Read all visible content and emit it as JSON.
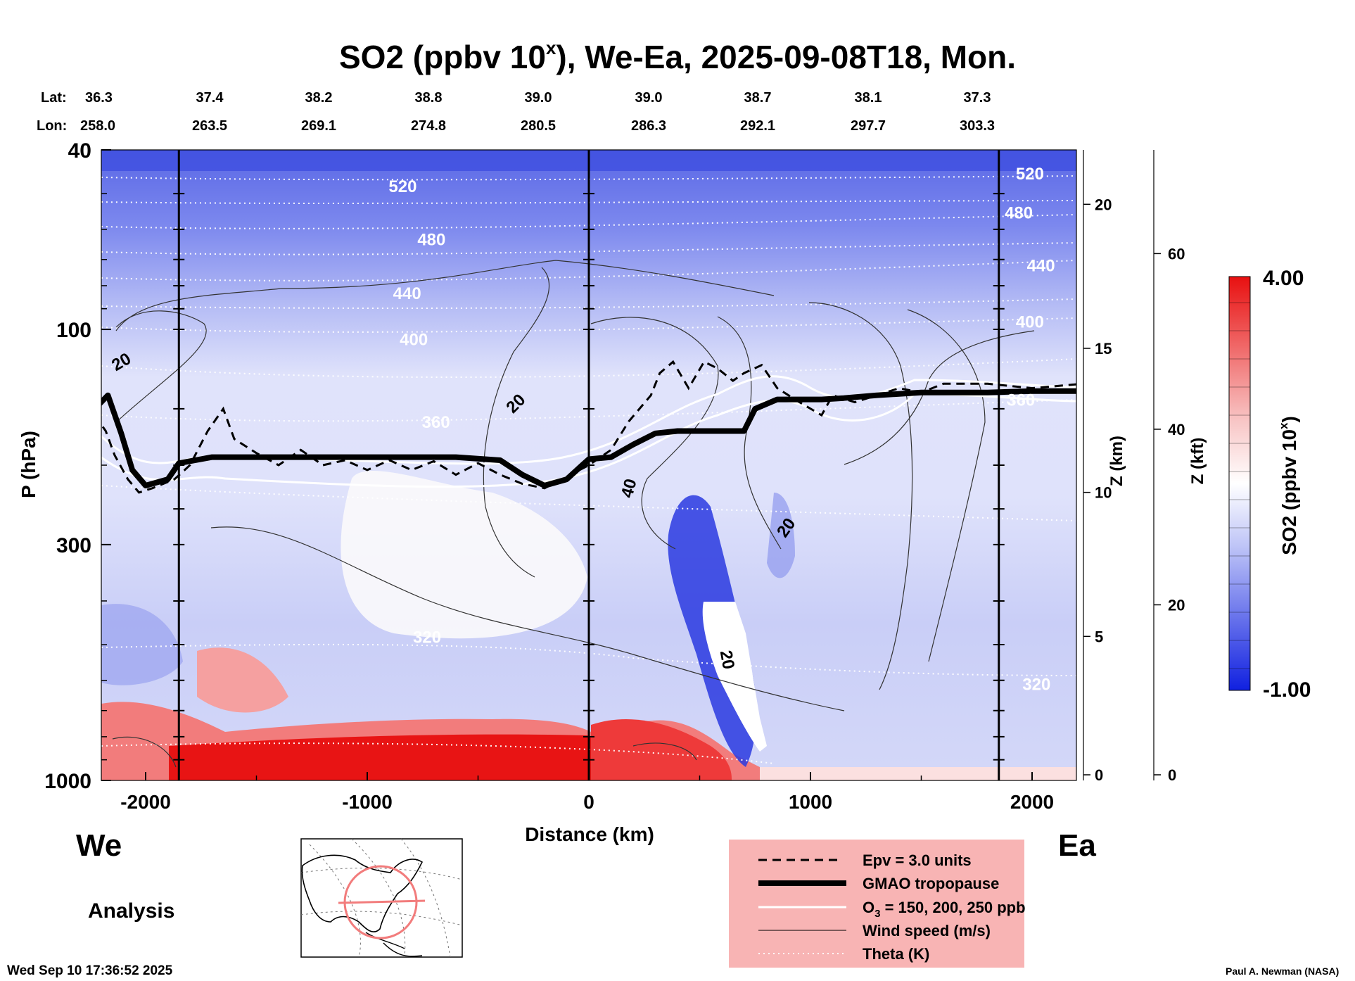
{
  "chart_data": {
    "type": "heatmap",
    "title_main": "SO2 (ppbv 10",
    "title_sup": "x",
    "title_rest": "), We-Ea, 2025-09-08T18, Mon.",
    "lat_label": "Lat:",
    "lon_label": "Lon:",
    "latitudes": [
      "36.3",
      "37.4",
      "38.2",
      "38.8",
      "39.0",
      "39.0",
      "38.7",
      "38.1",
      "37.3"
    ],
    "longitudes": [
      "258.0",
      "263.5",
      "269.1",
      "274.8",
      "280.5",
      "286.3",
      "292.1",
      "297.7",
      "303.3"
    ],
    "xlabel": "Distance (km)",
    "xlim": [
      -2200,
      2200
    ],
    "x_ticks": [
      -2000,
      -1000,
      0,
      1000,
      2000
    ],
    "x_tick_labels": [
      "-2000",
      "-1000",
      "0",
      "1000",
      "2000"
    ],
    "vertical_lines_km": [
      -1850,
      0,
      1850
    ],
    "ylabel": "P (hPa)",
    "ylim": [
      1000,
      40
    ],
    "y_ticks": [
      40,
      100,
      300,
      1000
    ],
    "y_tick_labels": [
      "40",
      "100",
      "300",
      "1000"
    ],
    "z_km_label": "Z (km)",
    "z_km_ticks": [
      "0",
      "5",
      "10",
      "15",
      "20"
    ],
    "z_kft_label": "Z (kft)",
    "z_kft_ticks": [
      "0",
      "20",
      "40",
      "60"
    ],
    "colorbar": {
      "label_main": "SO2 (ppbv 10",
      "label_sup": "x",
      "label_rest": ")",
      "max_label": "4.00",
      "min_label": "-1.00",
      "vmin": -1.0,
      "vmax": 4.0,
      "color_low": "#1020e0",
      "color_mid": "#ffffff",
      "color_high": "#e81010"
    },
    "theta_labels": [
      {
        "text": "520",
        "x_km": -840,
        "p": 48
      },
      {
        "text": "480",
        "x_km": -710,
        "p": 63
      },
      {
        "text": "440",
        "x_km": -820,
        "p": 83
      },
      {
        "text": "400",
        "x_km": -790,
        "p": 105
      },
      {
        "text": "360",
        "x_km": -690,
        "p": 160
      },
      {
        "text": "320",
        "x_km": -730,
        "p": 480
      },
      {
        "text": "520",
        "x_km": 1990,
        "p": 45
      },
      {
        "text": "480",
        "x_km": 1940,
        "p": 55
      },
      {
        "text": "440",
        "x_km": 2040,
        "p": 72
      },
      {
        "text": "400",
        "x_km": 1990,
        "p": 96
      },
      {
        "text": "360",
        "x_km": 1950,
        "p": 143
      },
      {
        "text": "320",
        "x_km": 2020,
        "p": 610
      }
    ],
    "wind_labels": [
      {
        "text": "20",
        "x_km": -2110,
        "p": 118,
        "rot": -30
      },
      {
        "text": "20",
        "x_km": -330,
        "p": 146,
        "rot": -45
      },
      {
        "text": "40",
        "x_km": 180,
        "p": 225,
        "rot": -75
      },
      {
        "text": "20",
        "x_km": 890,
        "p": 275,
        "rot": -55
      },
      {
        "text": "20",
        "x_km": 625,
        "p": 540,
        "rot": 80
      }
    ],
    "tropopause_gmao": [
      [
        -2230,
        150
      ],
      [
        -2170,
        140
      ],
      [
        -2110,
        170
      ],
      [
        -2060,
        205
      ],
      [
        -2000,
        222
      ],
      [
        -1900,
        215
      ],
      [
        -1850,
        198
      ],
      [
        -1700,
        192
      ],
      [
        -1500,
        192
      ],
      [
        -1200,
        192
      ],
      [
        -900,
        192
      ],
      [
        -600,
        192
      ],
      [
        -400,
        195
      ],
      [
        -300,
        210
      ],
      [
        -200,
        222
      ],
      [
        -100,
        215
      ],
      [
        -30,
        200
      ],
      [
        0,
        194
      ],
      [
        100,
        192
      ],
      [
        200,
        180
      ],
      [
        300,
        170
      ],
      [
        400,
        168
      ],
      [
        700,
        168
      ],
      [
        750,
        150
      ],
      [
        850,
        143
      ],
      [
        950,
        143
      ],
      [
        1050,
        143
      ],
      [
        1150,
        142
      ],
      [
        1300,
        140
      ],
      [
        1500,
        138
      ],
      [
        1800,
        138
      ],
      [
        2000,
        137
      ],
      [
        2230,
        137
      ]
    ],
    "epv_contour": [
      [
        -2230,
        155
      ],
      [
        -2180,
        168
      ],
      [
        -2140,
        190
      ],
      [
        -2080,
        215
      ],
      [
        -2030,
        230
      ],
      [
        -1970,
        225
      ],
      [
        -1870,
        215
      ],
      [
        -1800,
        200
      ],
      [
        -1720,
        168
      ],
      [
        -1650,
        150
      ],
      [
        -1600,
        175
      ],
      [
        -1500,
        188
      ],
      [
        -1400,
        200
      ],
      [
        -1300,
        185
      ],
      [
        -1200,
        200
      ],
      [
        -1100,
        195
      ],
      [
        -1000,
        205
      ],
      [
        -900,
        195
      ],
      [
        -800,
        205
      ],
      [
        -700,
        196
      ],
      [
        -600,
        210
      ],
      [
        -500,
        198
      ],
      [
        -400,
        210
      ],
      [
        -300,
        220
      ],
      [
        -200,
        225
      ],
      [
        -100,
        212
      ],
      [
        0,
        200
      ],
      [
        100,
        185
      ],
      [
        180,
        160
      ],
      [
        280,
        140
      ],
      [
        320,
        125
      ],
      [
        380,
        118
      ],
      [
        450,
        135
      ],
      [
        520,
        118
      ],
      [
        580,
        122
      ],
      [
        650,
        130
      ],
      [
        700,
        125
      ],
      [
        780,
        120
      ],
      [
        850,
        135
      ],
      [
        950,
        145
      ],
      [
        1050,
        155
      ],
      [
        1100,
        140
      ],
      [
        1200,
        145
      ],
      [
        1300,
        140
      ],
      [
        1400,
        135
      ],
      [
        1500,
        138
      ],
      [
        1600,
        132
      ],
      [
        1800,
        132
      ],
      [
        2000,
        135
      ],
      [
        2230,
        132
      ]
    ],
    "legend": {
      "epv": "Epv = 3.0 units",
      "tropopause": "GMAO tropopause",
      "ozone_main": "O",
      "ozone_sub": "3",
      "ozone_rest": " = 150, 200, 250 ppb",
      "wind": "Wind speed (m/s)",
      "theta": "Theta (K)"
    },
    "west_label": "We",
    "east_label": "Ea",
    "analysis_label": "Analysis",
    "timestamp": "Wed Sep 10 17:36:52 2025",
    "credit": "Paul A. Newman (NASA)"
  }
}
